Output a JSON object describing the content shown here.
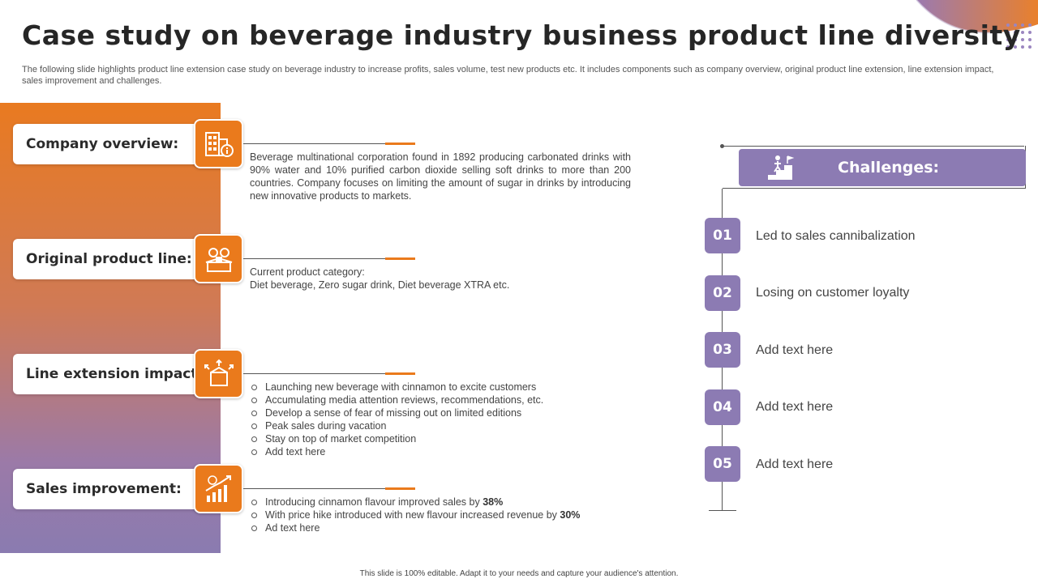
{
  "title": "Case study on beverage industry business product line diversity",
  "subtitle": "The following slide highlights product line extension case study on beverage industry to increase profits, sales volume, test new products etc. It includes components such as company overview, original product line extension, line extension impact, sales improvement and challenges.",
  "sections": [
    {
      "label": "Company overview:",
      "icon": "building-info-icon",
      "paragraph": "Beverage multinational corporation found in 1892 producing carbonated drinks with 90% water and 10% purified carbon dioxide selling soft drinks to more than 200 countries. Company focuses on limiting the amount of sugar in drinks by introducing new innovative  products to markets."
    },
    {
      "label": "Original product line:",
      "icon": "product-box-icon",
      "lines": [
        "Current product category:",
        "Diet beverage,  Zero sugar drink, Diet beverage  XTRA  etc."
      ]
    },
    {
      "label": "Line extension impact:",
      "icon": "expand-box-icon",
      "bullets": [
        "Launching new beverage  with cinnamon to excite customers",
        "Accumulating media attention reviews,  recommendations,  etc.",
        "Develop  a sense of fear of missing out on limited editions",
        "Peak sales during vacation",
        "Stay on top of market competition",
        "Add text here"
      ]
    },
    {
      "label": "Sales improvement:",
      "icon": "growth-chart-icon",
      "bullet1_pre": "Introducing cinnamon flavour  improved  sales by ",
      "bullet1_value": "38%",
      "bullet2_pre": "With price hike introduced with new flavour  increased revenue  by ",
      "bullet2_value": "30%",
      "bullet3": "Ad text here"
    }
  ],
  "challenges": {
    "title": "Challenges:",
    "icon": "climbing-stairs-icon",
    "items": [
      {
        "num": "01",
        "text": "Led to sales cannibalization"
      },
      {
        "num": "02",
        "text": "Losing on customer loyalty"
      },
      {
        "num": "03",
        "text": "Add text here"
      },
      {
        "num": "04",
        "text": "Add text here"
      },
      {
        "num": "05",
        "text": "Add text here"
      }
    ]
  },
  "footer": "This slide is 100% editable.  Adapt it to your needs and capture your audience's attention.",
  "colors": {
    "orange": "#ea7a1c",
    "purple": "#8c7bb3"
  }
}
